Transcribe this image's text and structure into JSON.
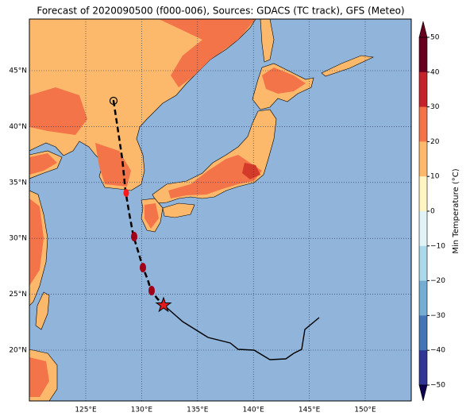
{
  "title": "Forecast of 2020090500 (f000-006), Sources: GDACS (TC track), GFS (Meteo)",
  "lat_labels": [
    "45°N",
    "40°N",
    "35°N",
    "30°N",
    "25°N",
    "20°N"
  ],
  "lon_labels": [
    "125°E",
    "130°E",
    "135°E",
    "140°E",
    "145°E",
    "150°E"
  ],
  "colorbar": {
    "label": "Min Temperature (°C)",
    "ticks": [
      "50",
      "40",
      "30",
      "20",
      "10",
      "0",
      "−10",
      "−20",
      "−30",
      "−40",
      "−50"
    ]
  }
}
